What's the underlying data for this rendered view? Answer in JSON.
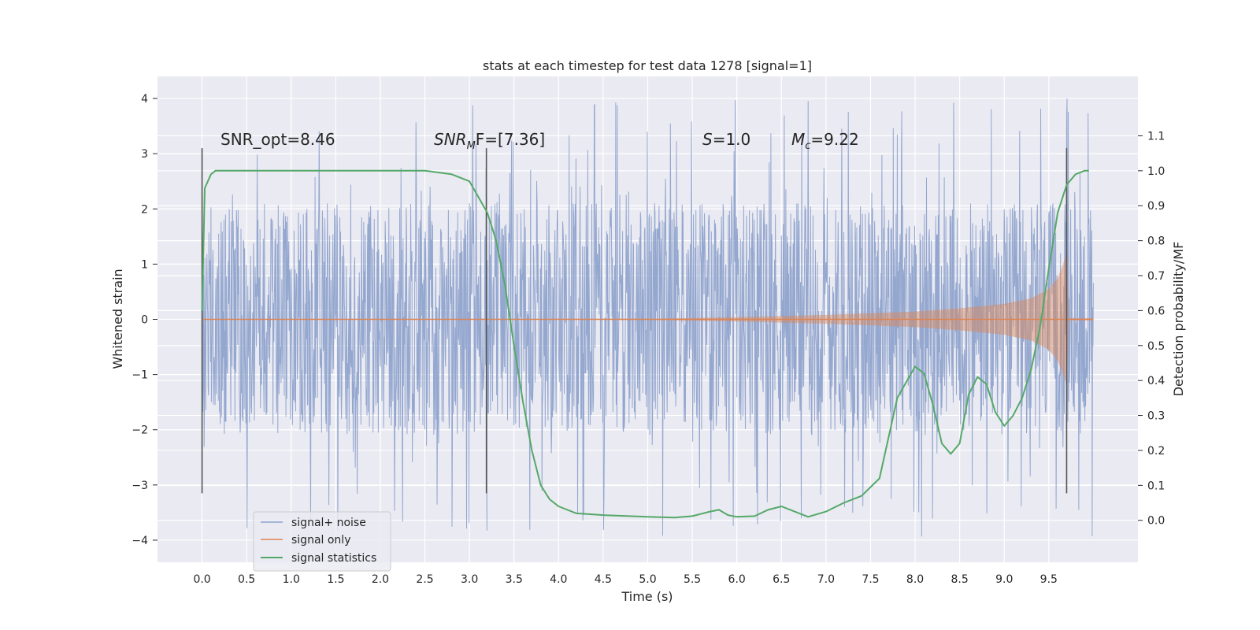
{
  "chart_data": {
    "type": "line",
    "title": "stats at each timestep for test data 1278 [signal=1]",
    "xlabel": "Time (s)",
    "ylabel": "Whitened strain",
    "y2label": "Detection probability/MF",
    "xlim": [
      -0.5,
      10.5
    ],
    "ylim": [
      -4.4,
      4.4
    ],
    "y2lim": [
      -0.12,
      1.27
    ],
    "x_ticks": [
      "0.0",
      "0.5",
      "1.0",
      "1.5",
      "2.0",
      "2.5",
      "3.0",
      "3.5",
      "4.0",
      "4.5",
      "5.0",
      "5.5",
      "6.0",
      "6.5",
      "7.0",
      "7.5",
      "8.0",
      "8.5",
      "9.0",
      "9.5"
    ],
    "y_ticks": [
      "4",
      "3",
      "2",
      "1",
      "0",
      "−1",
      "−2",
      "−3",
      "−4"
    ],
    "y2_ticks": [
      "1.1",
      "1.0",
      "0.9",
      "0.8",
      "0.7",
      "0.6",
      "0.5",
      "0.4",
      "0.3",
      "0.2",
      "0.1",
      "0.0"
    ],
    "grid": true,
    "legend_position": "lower-left",
    "colors": {
      "noise": "#8fa3cc",
      "signal": "#dd8452",
      "stats": "#55a868",
      "background": "#eaeaf2",
      "grid": "#ffffff",
      "vline": "#555555"
    },
    "annotations": {
      "snr_opt": "SNR_opt=8.46",
      "snr_mf_base": "SNR",
      "snr_mf_sub": "M",
      "snr_mf_rest": "F=[7.36]",
      "s_sym": "S",
      "s_val": "=1.0",
      "mc_sym": "M",
      "mc_sub": "c",
      "mc_val": "=9.22"
    },
    "vertical_lines_x": [
      0.0,
      3.19,
      9.7
    ],
    "vertical_lines_ylim": [
      -3.15,
      3.1
    ],
    "series": [
      {
        "name": "signal+ noise",
        "x_range": [
          0.0,
          10.0
        ],
        "envelope": {
          "typical_abs": 2.1,
          "peaks_max": 4.0,
          "peaks_min": -4.0
        }
      },
      {
        "name": "signal only",
        "x": [
          0.0,
          5.0,
          6.0,
          7.0,
          8.0,
          8.5,
          9.0,
          9.3,
          9.5,
          9.6,
          9.65,
          9.7
        ],
        "amplitude": [
          0.0,
          0.01,
          0.04,
          0.08,
          0.14,
          0.2,
          0.28,
          0.38,
          0.55,
          0.75,
          0.95,
          1.2
        ]
      },
      {
        "name": "signal statistics",
        "x": [
          0.0,
          0.03,
          0.1,
          0.15,
          0.2,
          0.4,
          1.0,
          2.0,
          2.5,
          2.8,
          3.0,
          3.2,
          3.3,
          3.4,
          3.5,
          3.6,
          3.7,
          3.8,
          3.9,
          4.0,
          4.2,
          4.5,
          5.0,
          5.3,
          5.5,
          5.7,
          5.8,
          5.9,
          6.0,
          6.2,
          6.35,
          6.5,
          6.6,
          6.8,
          7.0,
          7.2,
          7.4,
          7.6,
          7.8,
          8.0,
          8.1,
          8.2,
          8.3,
          8.4,
          8.5,
          8.6,
          8.7,
          8.8,
          8.9,
          9.0,
          9.1,
          9.2,
          9.3,
          9.4,
          9.5,
          9.6,
          9.7,
          9.8,
          9.9,
          9.95
        ],
        "y": [
          0.6,
          0.95,
          0.99,
          1.0,
          1.0,
          1.0,
          1.0,
          1.0,
          1.0,
          0.99,
          0.97,
          0.88,
          0.8,
          0.67,
          0.5,
          0.34,
          0.2,
          0.1,
          0.06,
          0.04,
          0.02,
          0.015,
          0.01,
          0.008,
          0.012,
          0.025,
          0.03,
          0.015,
          0.01,
          0.012,
          0.03,
          0.04,
          0.03,
          0.01,
          0.025,
          0.05,
          0.07,
          0.12,
          0.35,
          0.44,
          0.42,
          0.33,
          0.22,
          0.19,
          0.22,
          0.36,
          0.41,
          0.39,
          0.31,
          0.27,
          0.3,
          0.35,
          0.43,
          0.55,
          0.72,
          0.88,
          0.96,
          0.99,
          1.0,
          1.0
        ]
      }
    ]
  }
}
